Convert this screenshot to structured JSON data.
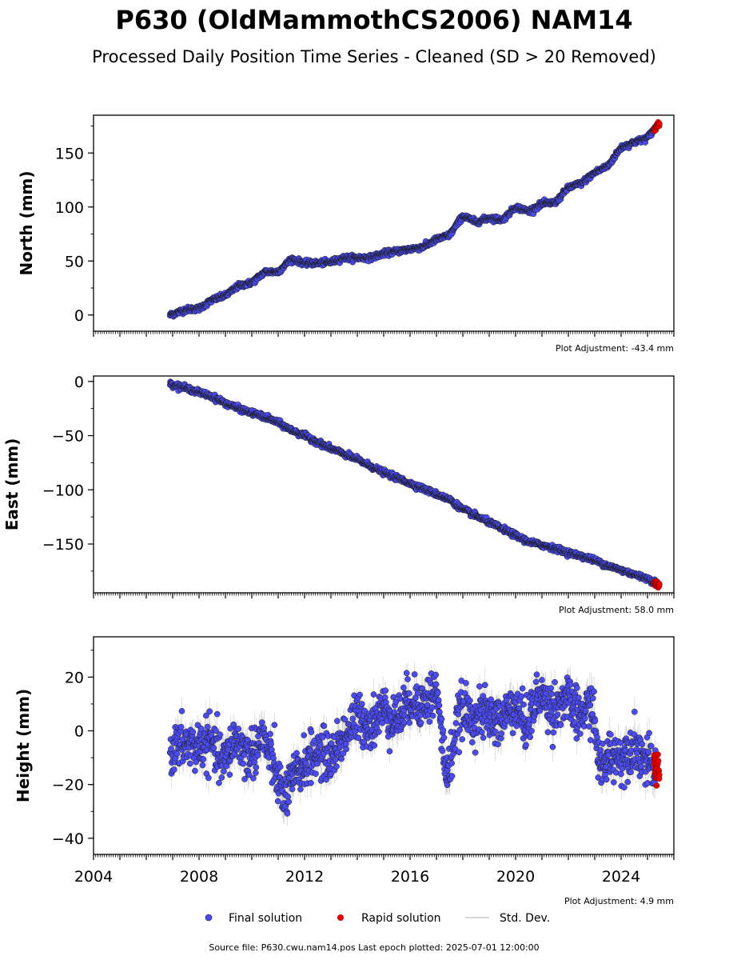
{
  "title": "P630 (OldMammothCS2006) NAM14",
  "subtitle": "Processed Daily Position Time Series - Cleaned (SD > 20 Removed)",
  "source_note": "Source file: P630.cwu.nam14.pos  Last epoch plotted: 2025-07-01 12:00:00",
  "legend": {
    "final": "Final solution",
    "rapid": "Rapid solution",
    "stddev": "Std. Dev.",
    "position": "bottom-center"
  },
  "colors": {
    "final_fill": "#4b4bf0",
    "final_edge": "#1a1a1a",
    "rapid": "#e00000",
    "stddev": "#b0b0b0"
  },
  "chart_data": [
    {
      "type": "scatter",
      "ylabel": "North (mm)",
      "adjustment": "Plot Adjustment: -43.4 mm",
      "xlim": [
        2004.0,
        2026.0
      ],
      "ylim": [
        -15,
        185
      ],
      "yticks": [
        0,
        50,
        100,
        150
      ],
      "ytick_labels": [
        "0",
        "50",
        "100",
        "150"
      ],
      "show_xtick_labels": false,
      "series": [
        {
          "name": "Final solution",
          "kind": "final",
          "x": [
            2006.9,
            2007.5,
            2008.0,
            2008.5,
            2009.0,
            2009.5,
            2010.0,
            2010.5,
            2011.0,
            2011.5,
            2012.0,
            2012.5,
            2013.0,
            2013.5,
            2014.0,
            2014.5,
            2015.0,
            2015.5,
            2016.0,
            2016.5,
            2017.0,
            2017.5,
            2018.0,
            2018.5,
            2019.0,
            2019.5,
            2020.0,
            2020.5,
            2021.0,
            2021.5,
            2022.0,
            2022.5,
            2023.0,
            2023.5,
            2024.0,
            2024.5,
            2025.0,
            2025.35
          ],
          "y": [
            0,
            5,
            6,
            14,
            18,
            27,
            30,
            40,
            40,
            52,
            48,
            48,
            49,
            53,
            53,
            53,
            57,
            59,
            61,
            63,
            70,
            74,
            92,
            86,
            90,
            88,
            100,
            96,
            103,
            104,
            118,
            122,
            132,
            138,
            155,
            160,
            164,
            175
          ]
        },
        {
          "name": "Rapid solution",
          "kind": "rapid",
          "x": [
            2025.25,
            2025.3,
            2025.35,
            2025.4,
            2025.45
          ],
          "y": [
            171,
            173,
            175,
            177,
            176
          ]
        }
      ]
    },
    {
      "type": "scatter",
      "ylabel": "East (mm)",
      "adjustment": "Plot Adjustment: 58.0 mm",
      "xlim": [
        2004.0,
        2026.0
      ],
      "ylim": [
        -195,
        5
      ],
      "yticks": [
        0,
        -50,
        -100,
        -150
      ],
      "ytick_labels": [
        "0",
        "−50",
        "−100",
        "−150"
      ],
      "show_xtick_labels": false,
      "series": [
        {
          "name": "Final solution",
          "kind": "final",
          "x": [
            2006.9,
            2007.5,
            2008.0,
            2008.5,
            2009.0,
            2009.5,
            2010.0,
            2010.5,
            2011.0,
            2011.5,
            2012.0,
            2012.5,
            2013.0,
            2013.5,
            2014.0,
            2014.5,
            2015.0,
            2015.5,
            2016.0,
            2016.5,
            2017.0,
            2017.5,
            2018.0,
            2018.5,
            2019.0,
            2019.5,
            2020.0,
            2020.5,
            2021.0,
            2021.5,
            2022.0,
            2022.5,
            2023.0,
            2023.5,
            2024.0,
            2024.5,
            2025.0,
            2025.35
          ],
          "y": [
            -2,
            -6,
            -10,
            -14,
            -20,
            -25,
            -29,
            -33,
            -38,
            -45,
            -50,
            -56,
            -62,
            -67,
            -72,
            -78,
            -84,
            -89,
            -94,
            -99,
            -104,
            -109,
            -118,
            -124,
            -130,
            -136,
            -142,
            -148,
            -151,
            -154,
            -158,
            -161,
            -165,
            -170,
            -174,
            -178,
            -182,
            -186
          ]
        },
        {
          "name": "Rapid solution",
          "kind": "rapid",
          "x": [
            2025.25,
            2025.3,
            2025.35,
            2025.4,
            2025.45
          ],
          "y": [
            -186,
            -188,
            -185,
            -189,
            -187
          ]
        }
      ]
    },
    {
      "type": "scatter",
      "ylabel": "Height (mm)",
      "adjustment": "Plot Adjustment: 4.9 mm",
      "xlim": [
        2004.0,
        2026.0
      ],
      "ylim": [
        -46,
        35
      ],
      "yticks": [
        20,
        0,
        -20,
        -40
      ],
      "ytick_labels": [
        "20",
        "0",
        "−20",
        "−40"
      ],
      "show_xtick_labels": true,
      "xticks": [
        2004,
        2008,
        2012,
        2016,
        2020,
        2024
      ],
      "xtick_labels": [
        "2004",
        "2008",
        "2012",
        "2016",
        "2020",
        "2024"
      ],
      "series": [
        {
          "name": "Final solution",
          "kind": "final",
          "x": [
            2006.9,
            2007.4,
            2007.9,
            2008.4,
            2008.9,
            2009.4,
            2009.9,
            2010.4,
            2010.9,
            2011.2,
            2011.6,
            2012.0,
            2012.5,
            2013.0,
            2013.5,
            2014.0,
            2014.5,
            2015.0,
            2015.5,
            2016.0,
            2016.5,
            2017.0,
            2017.4,
            2017.9,
            2018.4,
            2018.9,
            2019.4,
            2019.9,
            2020.4,
            2020.9,
            2021.4,
            2021.9,
            2022.4,
            2022.9,
            2023.2,
            2023.6,
            2024.0,
            2024.5,
            2025.0,
            2025.3
          ],
          "y": [
            -8,
            -5,
            -6,
            -4,
            -12,
            -3,
            -10,
            -2,
            -15,
            -25,
            -18,
            -12,
            -8,
            -10,
            -2,
            5,
            2,
            8,
            4,
            12,
            10,
            15,
            -18,
            8,
            5,
            6,
            3,
            10,
            2,
            14,
            8,
            12,
            5,
            10,
            -15,
            -8,
            -10,
            -5,
            -12,
            -15
          ]
        },
        {
          "name": "Rapid solution",
          "kind": "rapid",
          "x": [
            2025.25,
            2025.3,
            2025.35,
            2025.4,
            2025.45
          ],
          "y": [
            -10,
            -14,
            -18,
            -12,
            -16
          ]
        }
      ]
    }
  ]
}
